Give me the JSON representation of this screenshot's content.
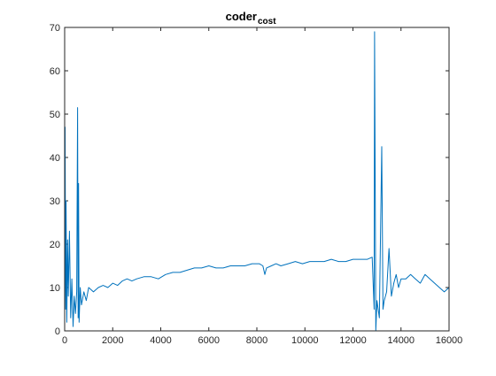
{
  "chart_data": {
    "type": "line",
    "title": "coder",
    "title_subscript": "cost",
    "xlabel": "",
    "ylabel": "",
    "xlim": [
      0,
      16000
    ],
    "ylim": [
      0,
      70
    ],
    "x_ticks": [
      0,
      2000,
      4000,
      6000,
      8000,
      10000,
      12000,
      14000,
      16000
    ],
    "y_ticks": [
      0,
      10,
      20,
      30,
      40,
      50,
      60,
      70
    ],
    "grid": false,
    "legend": "none",
    "line_color": "#0072BD",
    "series": [
      {
        "x": [
          0,
          20,
          40,
          60,
          90,
          120,
          150,
          200,
          250,
          300,
          350,
          400,
          450,
          500,
          540,
          560,
          580,
          600,
          650,
          700,
          800,
          900,
          1000,
          1200,
          1400,
          1600,
          1800,
          2000,
          2200,
          2400,
          2600,
          2800,
          3000,
          3300,
          3600,
          3900,
          4200,
          4500,
          4800,
          5100,
          5400,
          5700,
          6000,
          6300,
          6600,
          6900,
          7200,
          7500,
          7800,
          8100,
          8250,
          8330,
          8400,
          8600,
          8800,
          9000,
          9300,
          9600,
          9900,
          10200,
          10500,
          10800,
          11100,
          11400,
          11700,
          12000,
          12300,
          12600,
          12800,
          12880,
          12900,
          12950,
          13000,
          13100,
          13200,
          13250,
          13300,
          13400,
          13500,
          13600,
          13700,
          13800,
          13900,
          14000,
          14200,
          14400,
          14600,
          14800,
          15000,
          15200,
          15400,
          15600,
          15800,
          16000
        ],
        "y": [
          35,
          47,
          5,
          30,
          2,
          21,
          8,
          23,
          3,
          12,
          1,
          8,
          4,
          9,
          51.5,
          3,
          34,
          2,
          10,
          6,
          9,
          7,
          10,
          9,
          10,
          10.5,
          10,
          11,
          10.5,
          11.5,
          12,
          11.5,
          12,
          12.5,
          12.5,
          12,
          13,
          13.5,
          13.5,
          14,
          14.5,
          14.5,
          15,
          14.5,
          14.5,
          15,
          15,
          15,
          15.5,
          15.5,
          15,
          13,
          14.5,
          15,
          15.5,
          15,
          15.5,
          16,
          15.5,
          16,
          16,
          16,
          16.5,
          16,
          16,
          16.5,
          16.5,
          16.5,
          17,
          5,
          69,
          0,
          7,
          3,
          42.5,
          5,
          7,
          9,
          19,
          8,
          11,
          13,
          10,
          12,
          12,
          13,
          12,
          11,
          13,
          12,
          11,
          10,
          9,
          10
        ]
      }
    ]
  }
}
